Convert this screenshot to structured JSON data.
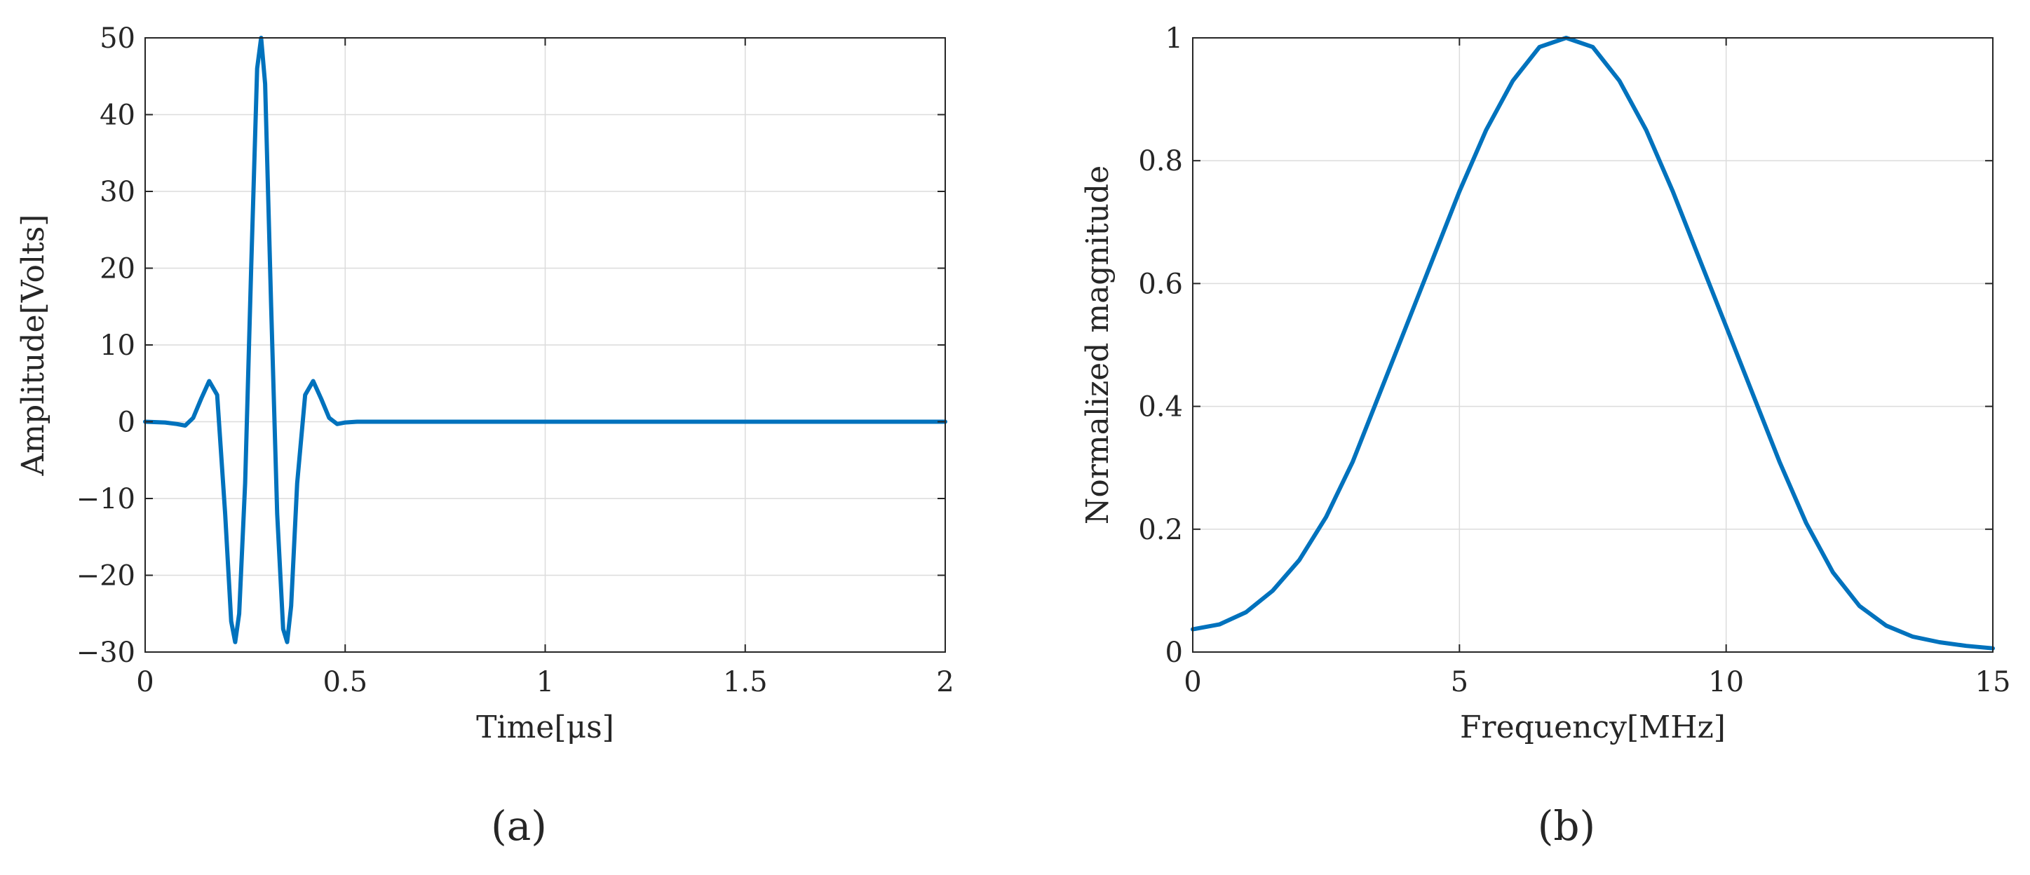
{
  "chart_data": [
    {
      "type": "line",
      "panel_label": "(a)",
      "title": "",
      "xlabel": "Time[μs]",
      "ylabel": "Amplitude[Volts]",
      "xlim": [
        0,
        2
      ],
      "ylim": [
        -30,
        50
      ],
      "xticks": [
        0,
        0.5,
        1,
        1.5,
        2
      ],
      "xtick_labels": [
        "0",
        "0.5",
        "1",
        "1.5",
        "2"
      ],
      "yticks": [
        -30,
        -20,
        -10,
        0,
        10,
        20,
        30,
        40,
        50
      ],
      "ytick_labels": [
        "−30",
        "−20",
        "−10",
        "0",
        "10",
        "20",
        "30",
        "40",
        "50"
      ],
      "grid": true,
      "color": "#0072BD",
      "series": [
        {
          "x": [
            0,
            0.05,
            0.08,
            0.1,
            0.12,
            0.14,
            0.16,
            0.18,
            0.2,
            0.215,
            0.225,
            0.235,
            0.25,
            0.265,
            0.28,
            0.29,
            0.3,
            0.315,
            0.33,
            0.345,
            0.355,
            0.365,
            0.38,
            0.4,
            0.42,
            0.44,
            0.46,
            0.48,
            0.5,
            0.53,
            0.56,
            1.0,
            1.5,
            2.0
          ],
          "y": [
            0,
            -0.1,
            -0.3,
            -0.5,
            0.5,
            3.0,
            5.3,
            3.5,
            -12.0,
            -26.0,
            -28.7,
            -25.0,
            -8.0,
            20.0,
            46.0,
            50.0,
            44.0,
            15.0,
            -12.0,
            -27.0,
            -28.7,
            -24.0,
            -8.0,
            3.5,
            5.3,
            3.0,
            0.5,
            -0.3,
            -0.1,
            0,
            0,
            0,
            0,
            0
          ]
        }
      ]
    },
    {
      "type": "line",
      "panel_label": "(b)",
      "title": "",
      "xlabel": "Frequency[MHz]",
      "ylabel": "Normalized magnitude",
      "xlim": [
        0,
        15
      ],
      "ylim": [
        0,
        1
      ],
      "xticks": [
        0,
        5,
        10,
        15
      ],
      "xtick_labels": [
        "0",
        "5",
        "10",
        "15"
      ],
      "yticks": [
        0,
        0.2,
        0.4,
        0.6,
        0.8,
        1
      ],
      "ytick_labels": [
        "0",
        "0.2",
        "0.4",
        "0.6",
        "0.8",
        "1"
      ],
      "grid": true,
      "color": "#0072BD",
      "series": [
        {
          "x": [
            0,
            0.5,
            1,
            1.5,
            2,
            2.5,
            3,
            3.5,
            4,
            4.5,
            5,
            5.5,
            6,
            6.5,
            7,
            7.5,
            8,
            8.5,
            9,
            9.5,
            10,
            10.5,
            11,
            11.5,
            12,
            12.5,
            13,
            13.5,
            14,
            14.5,
            15
          ],
          "y": [
            0.037,
            0.045,
            0.065,
            0.1,
            0.15,
            0.22,
            0.31,
            0.42,
            0.53,
            0.64,
            0.75,
            0.85,
            0.93,
            0.985,
            1.0,
            0.985,
            0.93,
            0.85,
            0.75,
            0.64,
            0.53,
            0.42,
            0.31,
            0.21,
            0.13,
            0.075,
            0.043,
            0.025,
            0.016,
            0.01,
            0.006
          ]
        }
      ]
    }
  ]
}
